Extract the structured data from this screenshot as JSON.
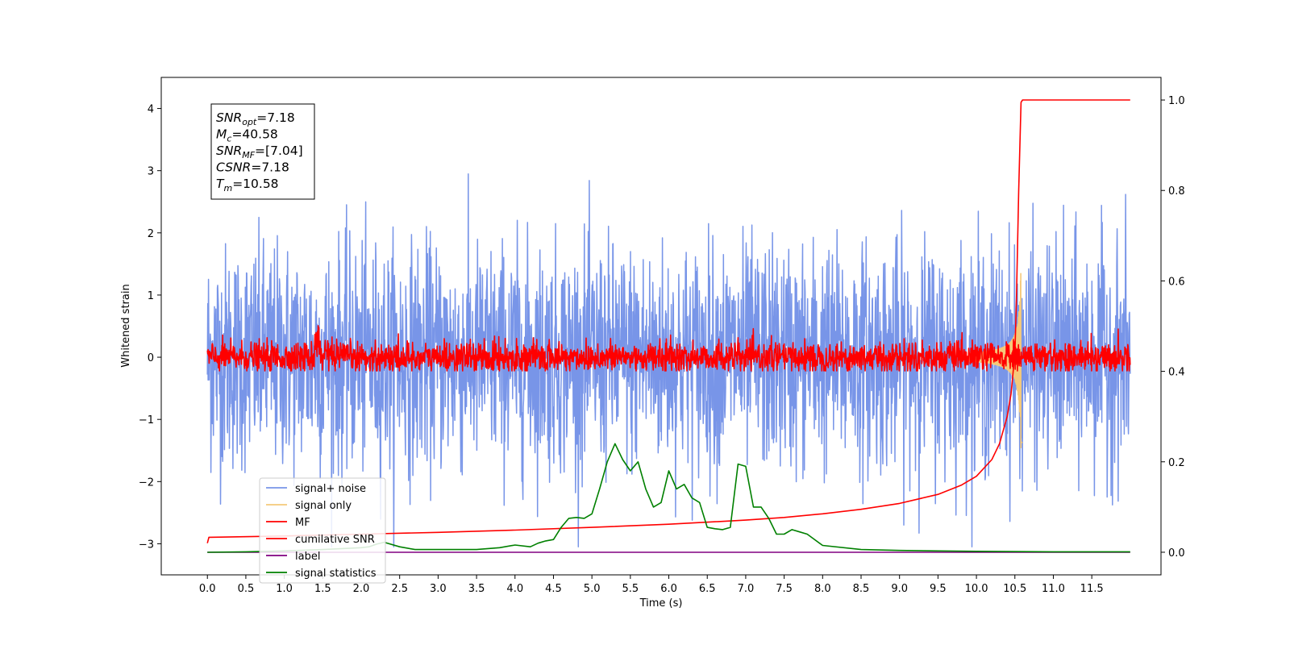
{
  "chart_data": {
    "type": "line",
    "xlabel": "Time (s)",
    "ylabel": "Whitened strain",
    "xlim": [
      -0.6,
      12.4
    ],
    "ylim": [
      -3.5,
      4.5
    ],
    "ylim_right": [
      -0.05,
      1.05
    ],
    "x_ticks": [
      "0.0",
      "0.5",
      "1.0",
      "1.5",
      "2.0",
      "2.5",
      "3.0",
      "3.5",
      "4.0",
      "4.5",
      "5.0",
      "5.5",
      "6.0",
      "6.5",
      "7.0",
      "7.5",
      "8.0",
      "8.5",
      "9.0",
      "9.5",
      "10.0",
      "10.5",
      "11.0",
      "11.5"
    ],
    "y_ticks": [
      "4",
      "3",
      "2",
      "1",
      "0",
      "−1",
      "−2",
      "−3"
    ],
    "y_ticks_right": [
      "1.0",
      "0.8",
      "0.6",
      "0.4",
      "0.2",
      "0.0"
    ],
    "grid": false,
    "legend_position": "lower-left",
    "annotation": {
      "lines": [
        {
          "sym": "SNR",
          "sub": "opt",
          "val": "=7.18"
        },
        {
          "sym": "M",
          "sub": "c",
          "val": "=40.58"
        },
        {
          "sym": "SNR",
          "sub": "MF",
          "val": "=[7.04]"
        },
        {
          "sym": "CSNR",
          "sub": "",
          "val": "=7.18"
        },
        {
          "sym": "T",
          "sub": "m",
          "val": "=10.58"
        }
      ]
    },
    "series": [
      {
        "name": "signal+ noise",
        "color": "#7895e8",
        "axis": "left",
        "kind": "noise",
        "x_range": [
          0.0,
          12.0
        ],
        "amplitude_std": 0.9
      },
      {
        "name": "signal only",
        "color": "#f5c97a",
        "axis": "left",
        "kind": "chirp",
        "merger_time": 10.58,
        "peak_amplitude": 1.6
      },
      {
        "name": "MF",
        "color": "#ff0000",
        "axis": "left",
        "kind": "noise",
        "x_range": [
          0.0,
          12.0
        ],
        "amplitude_std": 0.12
      },
      {
        "name": "cumilative SNR",
        "color": "#ff0000",
        "axis": "right",
        "x": [
          0.0,
          0.02,
          1.0,
          2.0,
          3.0,
          4.0,
          5.0,
          6.0,
          7.0,
          7.5,
          8.0,
          8.5,
          9.0,
          9.5,
          9.8,
          10.0,
          10.2,
          10.3,
          10.4,
          10.45,
          10.5,
          10.52,
          10.55,
          10.58,
          10.6,
          11.0,
          11.5,
          12.0
        ],
        "y": [
          0.02,
          0.033,
          0.036,
          0.04,
          0.044,
          0.049,
          0.055,
          0.062,
          0.071,
          0.077,
          0.085,
          0.095,
          0.108,
          0.128,
          0.148,
          0.168,
          0.205,
          0.24,
          0.3,
          0.35,
          0.44,
          0.56,
          0.8,
          0.995,
          1.0,
          1.0,
          1.0,
          1.0
        ]
      },
      {
        "name": "label",
        "color": "#800080",
        "axis": "right",
        "x": [
          0.0,
          12.0
        ],
        "y": [
          0.0,
          0.0
        ]
      },
      {
        "name": "signal statistics",
        "color": "#008000",
        "axis": "right",
        "x": [
          0.0,
          0.5,
          1.0,
          1.5,
          2.0,
          2.1,
          2.2,
          2.3,
          2.5,
          2.7,
          3.0,
          3.5,
          3.8,
          4.0,
          4.2,
          4.3,
          4.4,
          4.5,
          4.6,
          4.7,
          4.8,
          4.9,
          5.0,
          5.1,
          5.2,
          5.3,
          5.4,
          5.5,
          5.6,
          5.7,
          5.8,
          5.9,
          6.0,
          6.1,
          6.2,
          6.3,
          6.4,
          6.5,
          6.6,
          6.7,
          6.8,
          6.9,
          7.0,
          7.1,
          7.2,
          7.3,
          7.4,
          7.5,
          7.6,
          7.7,
          7.8,
          8.0,
          8.5,
          9.0,
          9.5,
          10.0,
          11.0,
          12.0
        ],
        "y": [
          0.0,
          0.001,
          0.003,
          0.006,
          0.01,
          0.012,
          0.018,
          0.022,
          0.012,
          0.006,
          0.006,
          0.006,
          0.01,
          0.016,
          0.012,
          0.02,
          0.025,
          0.028,
          0.055,
          0.075,
          0.077,
          0.075,
          0.085,
          0.14,
          0.2,
          0.24,
          0.205,
          0.18,
          0.2,
          0.14,
          0.1,
          0.11,
          0.18,
          0.14,
          0.15,
          0.12,
          0.11,
          0.055,
          0.052,
          0.05,
          0.055,
          0.195,
          0.19,
          0.1,
          0.1,
          0.075,
          0.04,
          0.04,
          0.05,
          0.045,
          0.04,
          0.015,
          0.006,
          0.004,
          0.003,
          0.002,
          0.001,
          0.001
        ]
      }
    ]
  }
}
